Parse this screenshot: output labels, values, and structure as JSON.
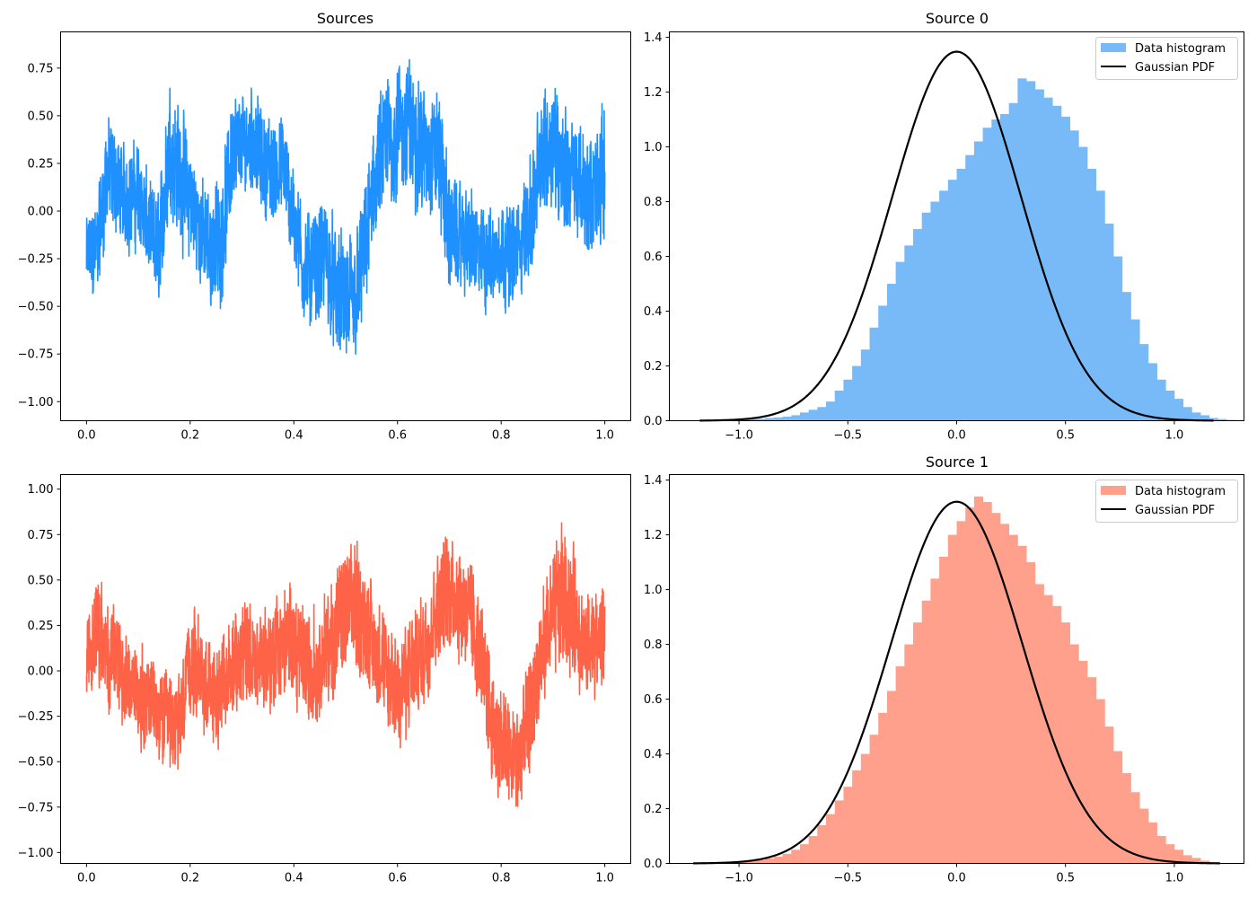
{
  "chart_data": [
    {
      "type": "line",
      "title": "Sources",
      "xlabel": "",
      "ylabel": "",
      "xlim": [
        -0.05,
        1.05
      ],
      "ylim": [
        -1.1,
        0.94
      ],
      "xticks": [
        0.0,
        0.2,
        0.4,
        0.6,
        0.8,
        1.0
      ],
      "xtick_labels": [
        "0.0",
        "0.2",
        "0.4",
        "0.6",
        "0.8",
        "1.0"
      ],
      "yticks": [
        -1.0,
        -0.75,
        -0.5,
        -0.25,
        0.0,
        0.25,
        0.5,
        0.75
      ],
      "ytick_labels": [
        "−1.00",
        "−0.75",
        "−0.50",
        "−0.25",
        "0.00",
        "0.25",
        "0.50",
        "0.75"
      ],
      "color": "#1e90ff",
      "grid": false,
      "series": [
        {
          "x": [
            0.0,
            0.02,
            0.04,
            0.06,
            0.08,
            0.1,
            0.12,
            0.14,
            0.16,
            0.18,
            0.2,
            0.22,
            0.24,
            0.26,
            0.28,
            0.3,
            0.32,
            0.34,
            0.36,
            0.38,
            0.4,
            0.42,
            0.44,
            0.46,
            0.48,
            0.5,
            0.52,
            0.54,
            0.56,
            0.58,
            0.6,
            0.62,
            0.64,
            0.66,
            0.68,
            0.7,
            0.72,
            0.74,
            0.76,
            0.78,
            0.8,
            0.82,
            0.84,
            0.86,
            0.88,
            0.9,
            0.92,
            0.94,
            0.96,
            0.98,
            1.0
          ],
          "values": [
            -0.25,
            -0.2,
            0.2,
            0.15,
            0.05,
            0.1,
            -0.1,
            -0.2,
            0.35,
            0.2,
            0.05,
            -0.1,
            -0.2,
            -0.15,
            0.3,
            0.35,
            0.4,
            0.25,
            0.2,
            0.25,
            -0.05,
            -0.3,
            -0.3,
            -0.25,
            -0.4,
            -0.5,
            -0.45,
            -0.15,
            0.2,
            0.35,
            0.4,
            0.45,
            0.35,
            0.3,
            0.3,
            -0.1,
            -0.15,
            -0.15,
            -0.25,
            -0.25,
            -0.2,
            -0.25,
            -0.15,
            0.0,
            0.3,
            0.4,
            0.2,
            0.2,
            0.1,
            0.1,
            0.2
          ],
          "amplitude": [
            0.25,
            0.3,
            0.35,
            0.3,
            0.3,
            0.3,
            0.3,
            0.35,
            0.4,
            0.4,
            0.35,
            0.3,
            0.35,
            0.35,
            0.35,
            0.3,
            0.3,
            0.3,
            0.3,
            0.3,
            0.3,
            0.35,
            0.35,
            0.35,
            0.35,
            0.4,
            0.4,
            0.35,
            0.4,
            0.4,
            0.4,
            0.4,
            0.4,
            0.35,
            0.4,
            0.35,
            0.3,
            0.3,
            0.3,
            0.3,
            0.3,
            0.3,
            0.3,
            0.35,
            0.4,
            0.4,
            0.4,
            0.35,
            0.35,
            0.35,
            0.4
          ]
        }
      ]
    },
    {
      "type": "bar",
      "title": "Source 0",
      "xlabel": "",
      "ylabel": "",
      "xlim": [
        -1.32,
        1.32
      ],
      "ylim": [
        0.0,
        1.42
      ],
      "xticks": [
        -1.0,
        -0.5,
        0.0,
        0.5,
        1.0
      ],
      "xtick_labels": [
        "−1.0",
        "−0.5",
        "0.0",
        "0.5",
        "1.0"
      ],
      "yticks": [
        0.0,
        0.2,
        0.4,
        0.6,
        0.8,
        1.0,
        1.2,
        1.4
      ],
      "ytick_labels": [
        "0.0",
        "0.2",
        "0.4",
        "0.6",
        "0.8",
        "1.0",
        "1.2",
        "1.4"
      ],
      "grid": false,
      "legend_position": "top-right",
      "legend": [
        {
          "label": "Data histogram",
          "kind": "patch",
          "color": "#78baf8"
        },
        {
          "label": "Gaussian PDF",
          "kind": "line",
          "color": "#000000"
        }
      ],
      "histogram": {
        "name": "Data histogram",
        "color": "#78baf8",
        "bin_start": -1.0,
        "bin_width": 0.04,
        "heights": [
          0.003,
          0.005,
          0.007,
          0.01,
          0.012,
          0.015,
          0.02,
          0.03,
          0.04,
          0.05,
          0.07,
          0.11,
          0.15,
          0.2,
          0.26,
          0.34,
          0.42,
          0.5,
          0.58,
          0.64,
          0.7,
          0.76,
          0.8,
          0.84,
          0.88,
          0.92,
          0.97,
          1.02,
          1.07,
          1.1,
          1.12,
          1.16,
          1.25,
          1.24,
          1.21,
          1.18,
          1.15,
          1.11,
          1.06,
          1.0,
          0.92,
          0.84,
          0.72,
          0.6,
          0.47,
          0.37,
          0.28,
          0.21,
          0.15,
          0.11,
          0.08,
          0.05,
          0.03,
          0.02,
          0.01,
          0.006,
          0.003,
          0.001
        ]
      },
      "curve": {
        "name": "Gaussian PDF",
        "color": "#000000",
        "mean": 0.0,
        "std": 0.296,
        "x_range": [
          -1.18,
          1.18
        ]
      }
    },
    {
      "type": "line",
      "title": "",
      "xlabel": "",
      "ylabel": "",
      "xlim": [
        -0.05,
        1.05
      ],
      "ylim": [
        -1.06,
        1.08
      ],
      "xticks": [
        0.0,
        0.2,
        0.4,
        0.6,
        0.8,
        1.0
      ],
      "xtick_labels": [
        "0.0",
        "0.2",
        "0.4",
        "0.6",
        "0.8",
        "1.0"
      ],
      "yticks": [
        -1.0,
        -0.75,
        -0.5,
        -0.25,
        0.0,
        0.25,
        0.5,
        0.75,
        1.0
      ],
      "ytick_labels": [
        "−1.00",
        "−0.75",
        "−0.50",
        "−0.25",
        "0.00",
        "0.25",
        "0.50",
        "0.75",
        "1.00"
      ],
      "color": "#ff6347",
      "grid": false,
      "series": [
        {
          "x": [
            0.0,
            0.02,
            0.04,
            0.06,
            0.08,
            0.1,
            0.12,
            0.14,
            0.16,
            0.18,
            0.2,
            0.22,
            0.24,
            0.26,
            0.28,
            0.3,
            0.32,
            0.34,
            0.36,
            0.38,
            0.4,
            0.42,
            0.44,
            0.46,
            0.48,
            0.5,
            0.52,
            0.54,
            0.56,
            0.58,
            0.6,
            0.62,
            0.64,
            0.66,
            0.68,
            0.7,
            0.72,
            0.74,
            0.76,
            0.78,
            0.8,
            0.82,
            0.84,
            0.86,
            0.88,
            0.9,
            0.92,
            0.94,
            0.96,
            0.98,
            1.0
          ],
          "values": [
            0.1,
            0.2,
            0.1,
            0.05,
            -0.05,
            -0.1,
            -0.15,
            -0.25,
            -0.3,
            -0.3,
            0.05,
            0.0,
            -0.15,
            -0.1,
            0.0,
            0.1,
            0.05,
            0.05,
            0.1,
            0.15,
            0.15,
            0.05,
            0.0,
            0.1,
            0.2,
            0.3,
            0.35,
            0.25,
            0.1,
            -0.05,
            -0.1,
            -0.05,
            0.05,
            0.2,
            0.4,
            0.45,
            0.4,
            0.3,
            0.1,
            -0.25,
            -0.4,
            -0.5,
            -0.45,
            -0.2,
            0.1,
            0.3,
            0.45,
            0.3,
            0.1,
            0.15,
            0.2
          ],
          "amplitude": [
            0.3,
            0.35,
            0.35,
            0.3,
            0.3,
            0.3,
            0.3,
            0.3,
            0.3,
            0.3,
            0.35,
            0.35,
            0.3,
            0.3,
            0.35,
            0.35,
            0.35,
            0.3,
            0.35,
            0.35,
            0.35,
            0.35,
            0.35,
            0.35,
            0.4,
            0.4,
            0.4,
            0.35,
            0.35,
            0.35,
            0.3,
            0.35,
            0.35,
            0.35,
            0.35,
            0.35,
            0.35,
            0.35,
            0.35,
            0.35,
            0.35,
            0.35,
            0.35,
            0.35,
            0.35,
            0.4,
            0.45,
            0.4,
            0.35,
            0.35,
            0.35
          ]
        }
      ]
    },
    {
      "type": "bar",
      "title": "Source 1",
      "xlabel": "",
      "ylabel": "",
      "xlim": [
        -1.32,
        1.32
      ],
      "ylim": [
        0.0,
        1.42
      ],
      "xticks": [
        -1.0,
        -0.5,
        0.0,
        0.5,
        1.0
      ],
      "xtick_labels": [
        "−1.0",
        "−0.5",
        "0.0",
        "0.5",
        "1.0"
      ],
      "yticks": [
        0.0,
        0.2,
        0.4,
        0.6,
        0.8,
        1.0,
        1.2,
        1.4
      ],
      "ytick_labels": [
        "0.0",
        "0.2",
        "0.4",
        "0.6",
        "0.8",
        "1.0",
        "1.2",
        "1.4"
      ],
      "grid": false,
      "legend_position": "top-right",
      "legend": [
        {
          "label": "Data histogram",
          "kind": "patch",
          "color": "#ffa08c"
        },
        {
          "label": "Gaussian PDF",
          "kind": "line",
          "color": "#000000"
        }
      ],
      "histogram": {
        "name": "Data histogram",
        "color": "#ffa08c",
        "bin_start": -1.0,
        "bin_width": 0.04,
        "heights": [
          0.005,
          0.008,
          0.012,
          0.018,
          0.025,
          0.035,
          0.05,
          0.07,
          0.1,
          0.14,
          0.18,
          0.23,
          0.28,
          0.34,
          0.4,
          0.47,
          0.55,
          0.63,
          0.72,
          0.8,
          0.88,
          0.96,
          1.04,
          1.12,
          1.2,
          1.25,
          1.3,
          1.34,
          1.32,
          1.28,
          1.24,
          1.2,
          1.16,
          1.1,
          1.02,
          0.98,
          0.94,
          0.88,
          0.8,
          0.74,
          0.68,
          0.6,
          0.5,
          0.41,
          0.33,
          0.26,
          0.2,
          0.15,
          0.1,
          0.07,
          0.05,
          0.03,
          0.02,
          0.01,
          0.005,
          0.002,
          0.001,
          0.001
        ]
      },
      "curve": {
        "name": "Gaussian PDF",
        "color": "#000000",
        "mean": 0.0,
        "std": 0.302,
        "x_range": [
          -1.21,
          1.21
        ]
      }
    }
  ]
}
